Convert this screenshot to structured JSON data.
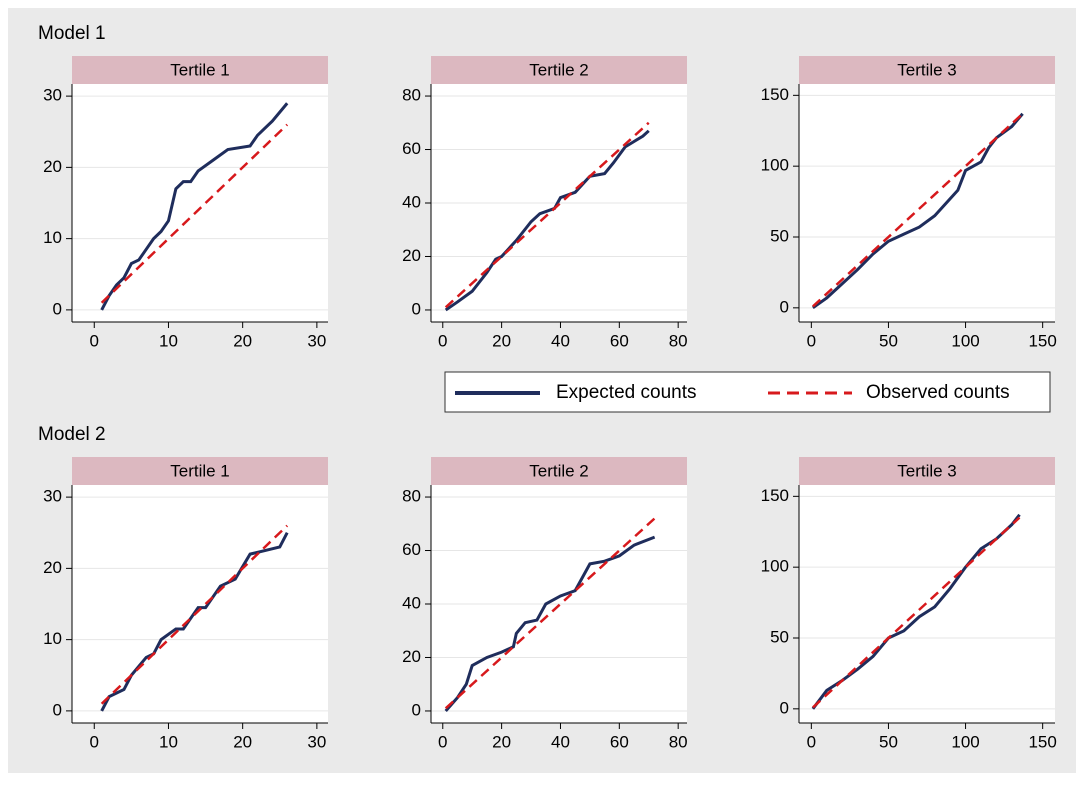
{
  "sections": [
    "Model 1",
    "Model 2"
  ],
  "chart_data": [
    {
      "type": "line",
      "title": "Tertile 1",
      "xlim": [
        -3,
        31.5
      ],
      "ylim": [
        -1.7,
        31.7
      ],
      "xticks": [
        0,
        10,
        20,
        30
      ],
      "yticks": [
        0,
        10,
        20,
        30
      ],
      "grid": true,
      "series": [
        {
          "name": "Expected counts",
          "color": "#1f2d5c",
          "style": "solid",
          "x": [
            1,
            2,
            3,
            4,
            5,
            6,
            7,
            8,
            9,
            10,
            11,
            12,
            13,
            14,
            16,
            18,
            21,
            22,
            24,
            26
          ],
          "values": [
            0,
            2,
            3.5,
            4.5,
            6.5,
            7,
            8.5,
            10,
            11,
            12.5,
            17,
            18,
            18,
            19.5,
            21,
            22.5,
            23,
            24.5,
            26.5,
            29
          ]
        },
        {
          "name": "Observed counts",
          "color": "#d7191c",
          "style": "dashed",
          "x": [
            1,
            26
          ],
          "values": [
            1,
            26
          ]
        }
      ]
    },
    {
      "type": "line",
      "title": "Tertile 2",
      "xlim": [
        -4,
        83
      ],
      "ylim": [
        -4.5,
        84.5
      ],
      "xticks": [
        0,
        20,
        40,
        60,
        80
      ],
      "yticks": [
        0,
        20,
        40,
        60,
        80
      ],
      "grid": true,
      "series": [
        {
          "name": "Expected counts",
          "color": "#1f2d5c",
          "style": "solid",
          "x": [
            1,
            5,
            10,
            15,
            18,
            20,
            25,
            30,
            33,
            38,
            40,
            45,
            50,
            55,
            58,
            62,
            65,
            68,
            70
          ],
          "values": [
            0,
            3,
            7,
            14,
            19,
            20,
            26,
            33,
            36,
            38,
            42,
            44,
            50,
            51,
            55,
            61,
            63,
            65,
            67
          ]
        },
        {
          "name": "Observed counts",
          "color": "#d7191c",
          "style": "dashed",
          "x": [
            1,
            70
          ],
          "values": [
            1,
            70
          ]
        }
      ]
    },
    {
      "type": "line",
      "title": "Tertile 3",
      "xlim": [
        -8,
        158
      ],
      "ylim": [
        -10,
        158
      ],
      "xticks": [
        0,
        50,
        100,
        150
      ],
      "yticks": [
        0,
        50,
        100,
        150
      ],
      "grid": true,
      "series": [
        {
          "name": "Expected counts",
          "color": "#1f2d5c",
          "style": "solid",
          "x": [
            1,
            10,
            20,
            30,
            40,
            50,
            60,
            70,
            80,
            90,
            95,
            100,
            110,
            115,
            120,
            130,
            137
          ],
          "values": [
            0,
            7,
            17,
            27,
            38,
            47,
            52,
            57,
            65,
            77,
            83,
            97,
            103,
            113,
            120,
            128,
            137
          ]
        },
        {
          "name": "Observed counts",
          "color": "#d7191c",
          "style": "dashed",
          "x": [
            1,
            137
          ],
          "values": [
            1,
            137
          ]
        }
      ]
    },
    {
      "type": "line",
      "title": "Tertile 1",
      "xlim": [
        -3,
        31.5
      ],
      "ylim": [
        -1.7,
        31.7
      ],
      "xticks": [
        0,
        10,
        20,
        30
      ],
      "yticks": [
        0,
        10,
        20,
        30
      ],
      "grid": true,
      "series": [
        {
          "name": "Expected counts",
          "color": "#1f2d5c",
          "style": "solid",
          "x": [
            1,
            2,
            4,
            5,
            7,
            8,
            9,
            11,
            12,
            14,
            15,
            17,
            19,
            21,
            23,
            25,
            26
          ],
          "values": [
            0,
            2,
            3,
            5,
            7.5,
            8,
            10,
            11.5,
            11.5,
            14.5,
            14.5,
            17.5,
            18.5,
            22,
            22.5,
            23,
            25
          ]
        },
        {
          "name": "Observed counts",
          "color": "#d7191c",
          "style": "dashed",
          "x": [
            1,
            26
          ],
          "values": [
            1,
            26
          ]
        }
      ]
    },
    {
      "type": "line",
      "title": "Tertile 2",
      "xlim": [
        -4,
        83
      ],
      "ylim": [
        -4.5,
        84.5
      ],
      "xticks": [
        0,
        20,
        40,
        60,
        80
      ],
      "yticks": [
        0,
        20,
        40,
        60,
        80
      ],
      "grid": true,
      "series": [
        {
          "name": "Expected counts",
          "color": "#1f2d5c",
          "style": "solid",
          "x": [
            1,
            5,
            8,
            10,
            15,
            20,
            24,
            25,
            28,
            32,
            35,
            40,
            45,
            50,
            55,
            60,
            65,
            72
          ],
          "values": [
            0,
            5,
            10,
            17,
            20,
            22,
            24,
            29,
            33,
            34,
            40,
            43,
            45,
            55,
            56,
            58,
            62,
            65
          ]
        },
        {
          "name": "Observed counts",
          "color": "#d7191c",
          "style": "dashed",
          "x": [
            1,
            72
          ],
          "values": [
            1,
            72
          ]
        }
      ]
    },
    {
      "type": "line",
      "title": "Tertile 3",
      "xlim": [
        -8,
        158
      ],
      "ylim": [
        -10,
        158
      ],
      "xticks": [
        0,
        50,
        100,
        150
      ],
      "yticks": [
        0,
        50,
        100,
        150
      ],
      "grid": true,
      "series": [
        {
          "name": "Expected counts",
          "color": "#1f2d5c",
          "style": "solid",
          "x": [
            1,
            10,
            20,
            30,
            40,
            50,
            60,
            70,
            80,
            90,
            100,
            110,
            120,
            130,
            135
          ],
          "values": [
            0,
            13,
            20,
            28,
            37,
            50,
            55,
            65,
            72,
            85,
            100,
            113,
            120,
            130,
            137
          ]
        },
        {
          "name": "Observed counts",
          "color": "#d7191c",
          "style": "dashed",
          "x": [
            1,
            135
          ],
          "values": [
            1,
            135
          ]
        }
      ]
    }
  ]
}
